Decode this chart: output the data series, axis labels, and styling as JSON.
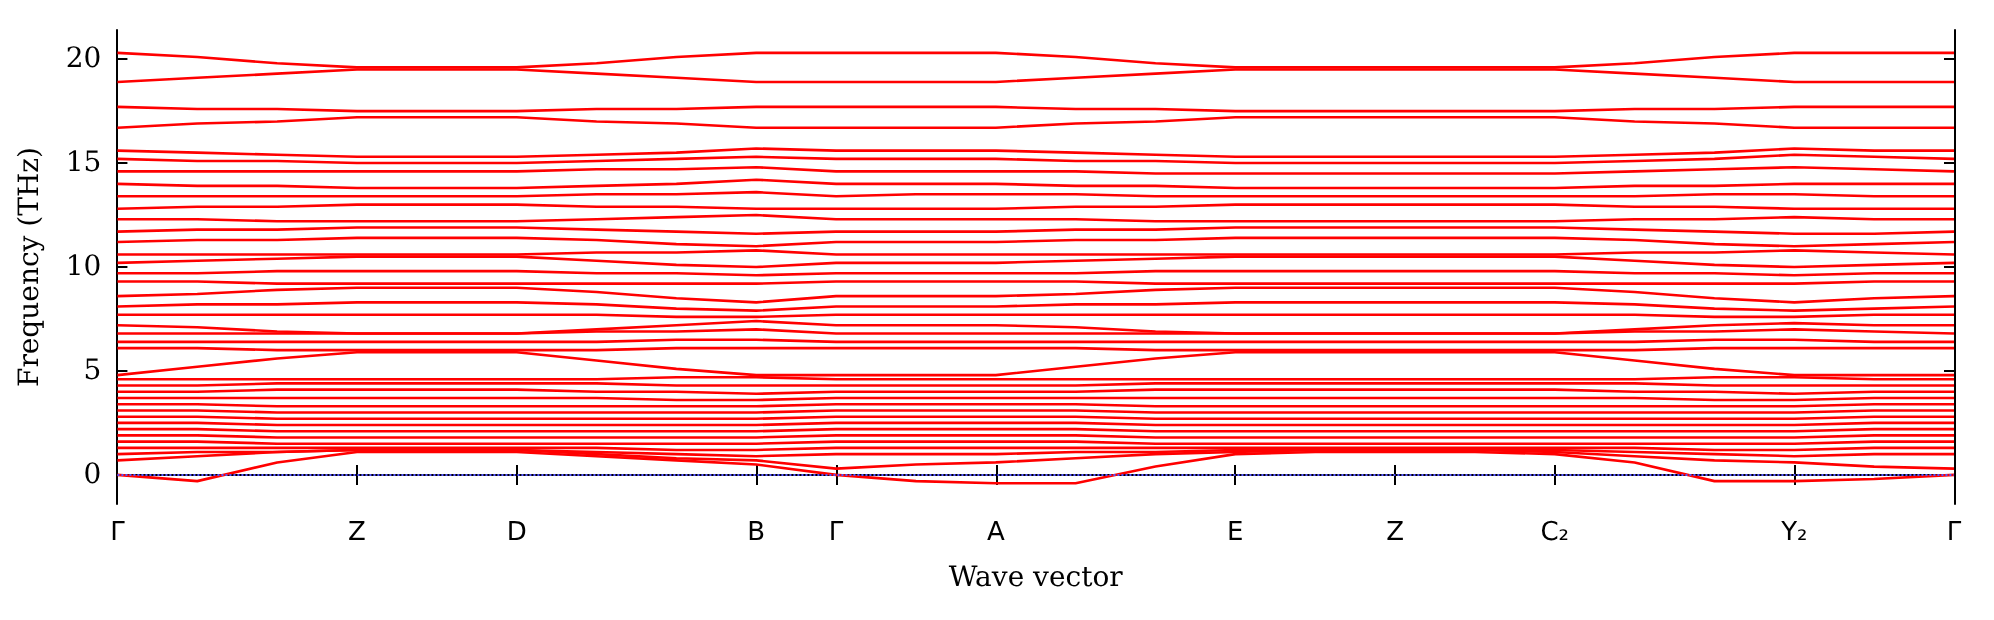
{
  "chart_data": {
    "type": "line",
    "xlabel": "Wave vector",
    "ylabel": "Frequency (THz)",
    "categories": [
      "Γ",
      null,
      null,
      "Z",
      null,
      "D",
      null,
      null,
      "B",
      "Γ",
      null,
      "A",
      null,
      null,
      "E",
      null,
      "Z",
      null,
      "C₂",
      null,
      null,
      "Y₂",
      null,
      "Γ"
    ],
    "ylim": [
      -1.4,
      21.4
    ],
    "yticks": [
      0,
      5,
      10,
      15,
      20
    ],
    "grid": false,
    "marker": "none",
    "line_style": "solid",
    "ref_lines": [
      {
        "axis": "y",
        "value": 0,
        "color": "#5555ff",
        "line_style": "dotted"
      }
    ],
    "series": [
      {
        "color": "#ff0000",
        "values": [
          20.3,
          20.1,
          19.8,
          19.6,
          19.6,
          19.6,
          19.8,
          20.1,
          20.3,
          20.3,
          20.3,
          20.3,
          20.1,
          19.8,
          19.6,
          19.6,
          19.6,
          19.6,
          19.6,
          19.8,
          20.1,
          20.3,
          20.3,
          20.3
        ]
      },
      {
        "color": "#ff0000",
        "values": [
          18.9,
          19.1,
          19.3,
          19.5,
          19.5,
          19.5,
          19.3,
          19.1,
          18.9,
          18.9,
          18.9,
          18.9,
          19.1,
          19.3,
          19.5,
          19.5,
          19.5,
          19.5,
          19.5,
          19.3,
          19.1,
          18.9,
          18.9,
          18.9
        ]
      },
      {
        "color": "#ff0000",
        "values": [
          17.7,
          17.6,
          17.6,
          17.5,
          17.5,
          17.5,
          17.6,
          17.6,
          17.7,
          17.7,
          17.7,
          17.7,
          17.6,
          17.6,
          17.5,
          17.5,
          17.5,
          17.5,
          17.5,
          17.6,
          17.6,
          17.7,
          17.7,
          17.7
        ]
      },
      {
        "color": "#ff0000",
        "values": [
          16.7,
          16.9,
          17.0,
          17.2,
          17.2,
          17.2,
          17.0,
          16.9,
          16.7,
          16.7,
          16.7,
          16.7,
          16.9,
          17.0,
          17.2,
          17.2,
          17.2,
          17.2,
          17.2,
          17.0,
          16.9,
          16.7,
          16.7,
          16.7
        ]
      },
      {
        "color": "#ff0000",
        "values": [
          15.6,
          15.5,
          15.4,
          15.3,
          15.3,
          15.3,
          15.4,
          15.5,
          15.7,
          15.6,
          15.6,
          15.6,
          15.5,
          15.4,
          15.3,
          15.3,
          15.3,
          15.3,
          15.3,
          15.4,
          15.5,
          15.7,
          15.6,
          15.6
        ]
      },
      {
        "color": "#ff0000",
        "values": [
          15.2,
          15.1,
          15.1,
          15.0,
          15.0,
          15.0,
          15.1,
          15.2,
          15.3,
          15.2,
          15.2,
          15.2,
          15.1,
          15.1,
          15.0,
          15.0,
          15.0,
          15.0,
          15.0,
          15.1,
          15.2,
          15.4,
          15.3,
          15.2
        ]
      },
      {
        "color": "#ff0000",
        "values": [
          14.6,
          14.6,
          14.6,
          14.6,
          14.6,
          14.6,
          14.7,
          14.7,
          14.8,
          14.6,
          14.6,
          14.6,
          14.6,
          14.5,
          14.5,
          14.5,
          14.5,
          14.5,
          14.5,
          14.6,
          14.7,
          14.8,
          14.7,
          14.6
        ]
      },
      {
        "color": "#ff0000",
        "values": [
          14.0,
          13.9,
          13.9,
          13.8,
          13.8,
          13.8,
          13.9,
          14.0,
          14.2,
          14.0,
          14.0,
          14.0,
          13.9,
          13.9,
          13.8,
          13.8,
          13.8,
          13.8,
          13.8,
          13.9,
          13.9,
          14.0,
          14.0,
          14.0
        ]
      },
      {
        "color": "#ff0000",
        "values": [
          13.4,
          13.4,
          13.4,
          13.4,
          13.4,
          13.4,
          13.5,
          13.5,
          13.6,
          13.4,
          13.5,
          13.5,
          13.5,
          13.4,
          13.4,
          13.4,
          13.4,
          13.4,
          13.4,
          13.4,
          13.5,
          13.5,
          13.4,
          13.4
        ]
      },
      {
        "color": "#ff0000",
        "values": [
          12.8,
          12.9,
          12.9,
          13.0,
          13.0,
          13.0,
          12.9,
          12.9,
          12.8,
          12.8,
          12.8,
          12.8,
          12.9,
          12.9,
          13.0,
          13.0,
          13.0,
          13.0,
          13.0,
          12.9,
          12.9,
          12.8,
          12.8,
          12.8
        ]
      },
      {
        "color": "#ff0000",
        "values": [
          12.3,
          12.3,
          12.2,
          12.2,
          12.2,
          12.2,
          12.3,
          12.4,
          12.5,
          12.3,
          12.3,
          12.3,
          12.3,
          12.2,
          12.2,
          12.2,
          12.2,
          12.2,
          12.2,
          12.3,
          12.3,
          12.4,
          12.3,
          12.3
        ]
      },
      {
        "color": "#ff0000",
        "values": [
          11.7,
          11.8,
          11.8,
          11.9,
          11.9,
          11.9,
          11.8,
          11.7,
          11.6,
          11.7,
          11.7,
          11.7,
          11.8,
          11.8,
          11.9,
          11.9,
          11.9,
          11.9,
          11.9,
          11.8,
          11.7,
          11.6,
          11.6,
          11.7
        ]
      },
      {
        "color": "#ff0000",
        "values": [
          11.2,
          11.3,
          11.3,
          11.4,
          11.4,
          11.4,
          11.3,
          11.1,
          11.0,
          11.2,
          11.2,
          11.2,
          11.3,
          11.3,
          11.4,
          11.4,
          11.4,
          11.4,
          11.4,
          11.3,
          11.1,
          11.0,
          11.1,
          11.2
        ]
      },
      {
        "color": "#ff0000",
        "values": [
          10.6,
          10.6,
          10.6,
          10.6,
          10.6,
          10.6,
          10.7,
          10.7,
          10.8,
          10.6,
          10.6,
          10.6,
          10.6,
          10.6,
          10.6,
          10.6,
          10.6,
          10.6,
          10.6,
          10.7,
          10.7,
          10.8,
          10.7,
          10.6
        ]
      },
      {
        "color": "#ff0000",
        "values": [
          10.2,
          10.3,
          10.4,
          10.5,
          10.5,
          10.5,
          10.3,
          10.1,
          10.0,
          10.2,
          10.2,
          10.2,
          10.3,
          10.4,
          10.5,
          10.5,
          10.5,
          10.5,
          10.5,
          10.3,
          10.1,
          10.0,
          10.1,
          10.2
        ]
      },
      {
        "color": "#ff0000",
        "values": [
          9.7,
          9.7,
          9.8,
          9.8,
          9.8,
          9.8,
          9.7,
          9.7,
          9.6,
          9.7,
          9.7,
          9.7,
          9.7,
          9.8,
          9.8,
          9.8,
          9.8,
          9.8,
          9.8,
          9.7,
          9.7,
          9.6,
          9.7,
          9.7
        ]
      },
      {
        "color": "#ff0000",
        "values": [
          9.3,
          9.3,
          9.2,
          9.2,
          9.2,
          9.2,
          9.2,
          9.2,
          9.2,
          9.3,
          9.3,
          9.3,
          9.3,
          9.2,
          9.2,
          9.2,
          9.2,
          9.2,
          9.2,
          9.2,
          9.2,
          9.2,
          9.3,
          9.3
        ]
      },
      {
        "color": "#ff0000",
        "values": [
          8.6,
          8.7,
          8.9,
          9.0,
          9.0,
          9.0,
          8.8,
          8.5,
          8.3,
          8.6,
          8.6,
          8.6,
          8.7,
          8.9,
          9.0,
          9.0,
          9.0,
          9.0,
          9.0,
          8.8,
          8.5,
          8.3,
          8.5,
          8.6
        ]
      },
      {
        "color": "#ff0000",
        "values": [
          8.1,
          8.2,
          8.2,
          8.3,
          8.3,
          8.3,
          8.2,
          8.0,
          7.9,
          8.1,
          8.1,
          8.1,
          8.2,
          8.2,
          8.3,
          8.3,
          8.3,
          8.3,
          8.3,
          8.2,
          8.0,
          7.9,
          8.0,
          8.1
        ]
      },
      {
        "color": "#ff0000",
        "values": [
          7.7,
          7.7,
          7.7,
          7.7,
          7.7,
          7.7,
          7.7,
          7.6,
          7.6,
          7.7,
          7.7,
          7.7,
          7.7,
          7.7,
          7.7,
          7.7,
          7.7,
          7.7,
          7.7,
          7.7,
          7.6,
          7.6,
          7.7,
          7.7
        ]
      },
      {
        "color": "#ff0000",
        "values": [
          7.2,
          7.1,
          6.9,
          6.8,
          6.8,
          6.8,
          7.0,
          7.2,
          7.4,
          7.2,
          7.2,
          7.2,
          7.1,
          6.9,
          6.8,
          6.8,
          6.8,
          6.8,
          6.8,
          7.0,
          7.2,
          7.3,
          7.2,
          7.2
        ]
      },
      {
        "color": "#ff0000",
        "values": [
          6.8,
          6.8,
          6.8,
          6.8,
          6.8,
          6.8,
          6.9,
          6.9,
          7.0,
          6.8,
          6.8,
          6.8,
          6.8,
          6.8,
          6.8,
          6.8,
          6.8,
          6.8,
          6.8,
          6.9,
          6.9,
          7.0,
          6.9,
          6.8
        ]
      },
      {
        "color": "#ff0000",
        "values": [
          6.4,
          6.4,
          6.4,
          6.4,
          6.4,
          6.4,
          6.4,
          6.5,
          6.5,
          6.4,
          6.4,
          6.4,
          6.4,
          6.4,
          6.4,
          6.4,
          6.4,
          6.4,
          6.4,
          6.4,
          6.5,
          6.5,
          6.4,
          6.4
        ]
      },
      {
        "color": "#ff0000",
        "values": [
          6.1,
          6.1,
          6.0,
          6.0,
          6.0,
          6.0,
          6.0,
          6.1,
          6.1,
          6.1,
          6.1,
          6.1,
          6.1,
          6.0,
          6.0,
          6.0,
          6.0,
          6.0,
          6.0,
          6.0,
          6.1,
          6.1,
          6.1,
          6.1
        ]
      },
      {
        "color": "#ff0000",
        "values": [
          4.8,
          5.2,
          5.6,
          5.9,
          5.9,
          5.9,
          5.5,
          5.1,
          4.8,
          4.8,
          4.8,
          4.8,
          5.2,
          5.6,
          5.9,
          5.9,
          5.9,
          5.9,
          5.9,
          5.5,
          5.1,
          4.8,
          4.8,
          4.8
        ]
      },
      {
        "color": "#ff0000",
        "values": [
          4.6,
          4.6,
          4.6,
          4.6,
          4.6,
          4.6,
          4.6,
          4.7,
          4.7,
          4.6,
          4.6,
          4.6,
          4.6,
          4.6,
          4.6,
          4.6,
          4.6,
          4.6,
          4.6,
          4.6,
          4.7,
          4.7,
          4.6,
          4.6
        ]
      },
      {
        "color": "#ff0000",
        "values": [
          4.3,
          4.3,
          4.4,
          4.4,
          4.4,
          4.4,
          4.4,
          4.3,
          4.3,
          4.3,
          4.3,
          4.3,
          4.3,
          4.4,
          4.4,
          4.4,
          4.4,
          4.4,
          4.4,
          4.4,
          4.3,
          4.3,
          4.3,
          4.3
        ]
      },
      {
        "color": "#ff0000",
        "values": [
          4.0,
          4.0,
          4.1,
          4.1,
          4.1,
          4.1,
          4.0,
          4.0,
          3.9,
          4.0,
          4.0,
          4.0,
          4.0,
          4.1,
          4.1,
          4.1,
          4.1,
          4.1,
          4.1,
          4.0,
          4.0,
          3.9,
          4.0,
          4.0
        ]
      },
      {
        "color": "#ff0000",
        "values": [
          3.7,
          3.7,
          3.7,
          3.7,
          3.7,
          3.7,
          3.7,
          3.6,
          3.6,
          3.7,
          3.7,
          3.7,
          3.7,
          3.7,
          3.7,
          3.7,
          3.7,
          3.7,
          3.7,
          3.7,
          3.6,
          3.6,
          3.7,
          3.7
        ]
      },
      {
        "color": "#ff0000",
        "values": [
          3.4,
          3.4,
          3.3,
          3.3,
          3.3,
          3.3,
          3.3,
          3.3,
          3.3,
          3.4,
          3.4,
          3.4,
          3.4,
          3.3,
          3.3,
          3.3,
          3.3,
          3.3,
          3.3,
          3.3,
          3.3,
          3.3,
          3.4,
          3.4
        ]
      },
      {
        "color": "#ff0000",
        "values": [
          3.1,
          3.1,
          3.0,
          3.0,
          3.0,
          3.0,
          3.0,
          3.0,
          3.0,
          3.1,
          3.1,
          3.1,
          3.1,
          3.0,
          3.0,
          3.0,
          3.0,
          3.0,
          3.0,
          3.0,
          3.0,
          3.0,
          3.1,
          3.1
        ]
      },
      {
        "color": "#ff0000",
        "values": [
          2.8,
          2.8,
          2.7,
          2.7,
          2.7,
          2.7,
          2.7,
          2.7,
          2.7,
          2.8,
          2.8,
          2.8,
          2.8,
          2.7,
          2.7,
          2.7,
          2.7,
          2.7,
          2.7,
          2.7,
          2.7,
          2.7,
          2.8,
          2.8
        ]
      },
      {
        "color": "#ff0000",
        "values": [
          2.5,
          2.5,
          2.4,
          2.4,
          2.4,
          2.4,
          2.4,
          2.4,
          2.4,
          2.5,
          2.5,
          2.5,
          2.5,
          2.4,
          2.4,
          2.4,
          2.4,
          2.4,
          2.4,
          2.4,
          2.4,
          2.4,
          2.5,
          2.5
        ]
      },
      {
        "color": "#ff0000",
        "values": [
          2.2,
          2.2,
          2.1,
          2.1,
          2.1,
          2.1,
          2.1,
          2.1,
          2.1,
          2.2,
          2.2,
          2.2,
          2.2,
          2.1,
          2.1,
          2.1,
          2.1,
          2.1,
          2.1,
          2.1,
          2.1,
          2.1,
          2.2,
          2.2
        ]
      },
      {
        "color": "#ff0000",
        "values": [
          1.9,
          1.9,
          1.8,
          1.8,
          1.8,
          1.8,
          1.8,
          1.8,
          1.8,
          1.9,
          1.9,
          1.9,
          1.9,
          1.8,
          1.8,
          1.8,
          1.8,
          1.8,
          1.8,
          1.8,
          1.8,
          1.8,
          1.9,
          1.9
        ]
      },
      {
        "color": "#ff0000",
        "values": [
          1.6,
          1.6,
          1.5,
          1.5,
          1.5,
          1.5,
          1.5,
          1.5,
          1.5,
          1.6,
          1.6,
          1.6,
          1.6,
          1.5,
          1.5,
          1.5,
          1.5,
          1.5,
          1.5,
          1.5,
          1.5,
          1.5,
          1.6,
          1.6
        ]
      },
      {
        "color": "#ff0000",
        "values": [
          1.3,
          1.3,
          1.3,
          1.3,
          1.3,
          1.3,
          1.3,
          1.2,
          1.2,
          1.3,
          1.3,
          1.3,
          1.3,
          1.3,
          1.3,
          1.3,
          1.3,
          1.3,
          1.3,
          1.3,
          1.2,
          1.2,
          1.3,
          1.3
        ]
      },
      {
        "color": "#ff0000",
        "values": [
          1.0,
          1.1,
          1.1,
          1.2,
          1.2,
          1.2,
          1.1,
          1.0,
          0.9,
          1.0,
          1.0,
          1.0,
          1.1,
          1.1,
          1.2,
          1.2,
          1.2,
          1.2,
          1.2,
          1.1,
          1.0,
          0.9,
          1.0,
          1.0
        ]
      },
      {
        "color": "#ff0000",
        "values": [
          0.7,
          0.9,
          1.1,
          1.2,
          1.2,
          1.2,
          1.0,
          0.8,
          0.7,
          0.3,
          0.5,
          0.6,
          0.8,
          1.0,
          1.1,
          1.2,
          1.2,
          1.2,
          1.1,
          0.9,
          0.7,
          0.6,
          0.4,
          0.3
        ]
      },
      {
        "color": "#ff0000",
        "values": [
          0,
          -0.3,
          0.6,
          1.1,
          1.1,
          1.1,
          0.9,
          0.7,
          0.5,
          0,
          -0.3,
          -0.4,
          -0.4,
          0.4,
          1.0,
          1.1,
          1.1,
          1.1,
          1.0,
          0.6,
          -0.3,
          -0.3,
          -0.2,
          0
        ]
      }
    ]
  }
}
